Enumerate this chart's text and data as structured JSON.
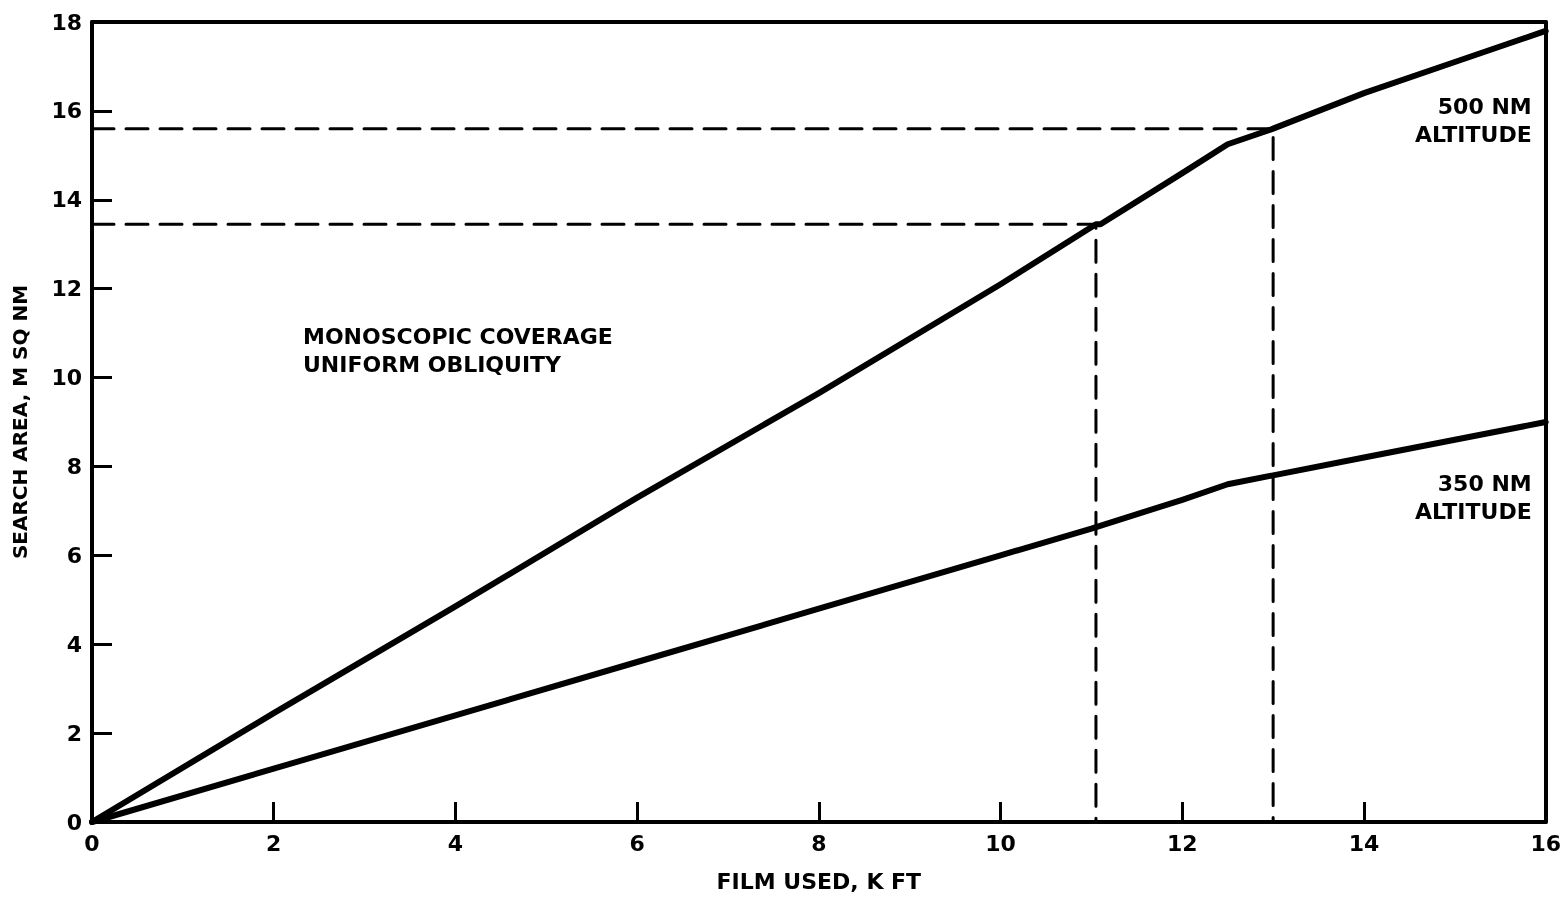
{
  "chart_data": {
    "type": "line",
    "xlabel": "FILM USED, K FT",
    "ylabel": "SEARCH AREA, M SQ NM",
    "xlim": [
      0,
      16
    ],
    "xticks": [
      0,
      2,
      4,
      6,
      8,
      10,
      12,
      14,
      16
    ],
    "ylim": [
      0,
      18
    ],
    "yticks": [
      0,
      2,
      4,
      6,
      8,
      10,
      12,
      14,
      16,
      18
    ],
    "grid": false,
    "marker": "none",
    "series": [
      {
        "name": "500 NM\nALTITUDE",
        "color": "#000000",
        "line_style": "solid",
        "x": [
          0,
          2,
          4,
          6,
          8,
          10,
          11.05,
          11.1,
          12,
          12.5,
          13,
          14,
          15,
          16
        ],
        "values": [
          0,
          2.45,
          4.85,
          7.3,
          9.65,
          12.1,
          13.45,
          13.45,
          14.6,
          15.25,
          15.6,
          16.4,
          17.1,
          17.8
        ]
      },
      {
        "name": "350 NM\nALTITUDE",
        "color": "#000000",
        "line_style": "solid",
        "x": [
          0,
          2,
          4,
          6,
          8,
          10,
          11,
          12,
          12.5,
          13,
          14,
          15,
          16
        ],
        "values": [
          0,
          1.2,
          2.4,
          3.6,
          4.8,
          6.0,
          6.6,
          7.25,
          7.6,
          7.8,
          8.2,
          8.6,
          9.0
        ]
      },
      {
        "color": "#000000",
        "line_style": "dashed",
        "x": [
          0,
          11.05,
          11.05
        ],
        "values": [
          13.45,
          13.45,
          0
        ]
      },
      {
        "color": "#000000",
        "line_style": "dashed",
        "x": [
          0,
          13,
          13
        ],
        "values": [
          15.6,
          15.6,
          0
        ]
      }
    ],
    "annotations": [
      "MONOSCOPIC COVERAGE\nUNIFORM OBLIQUITY"
    ]
  }
}
